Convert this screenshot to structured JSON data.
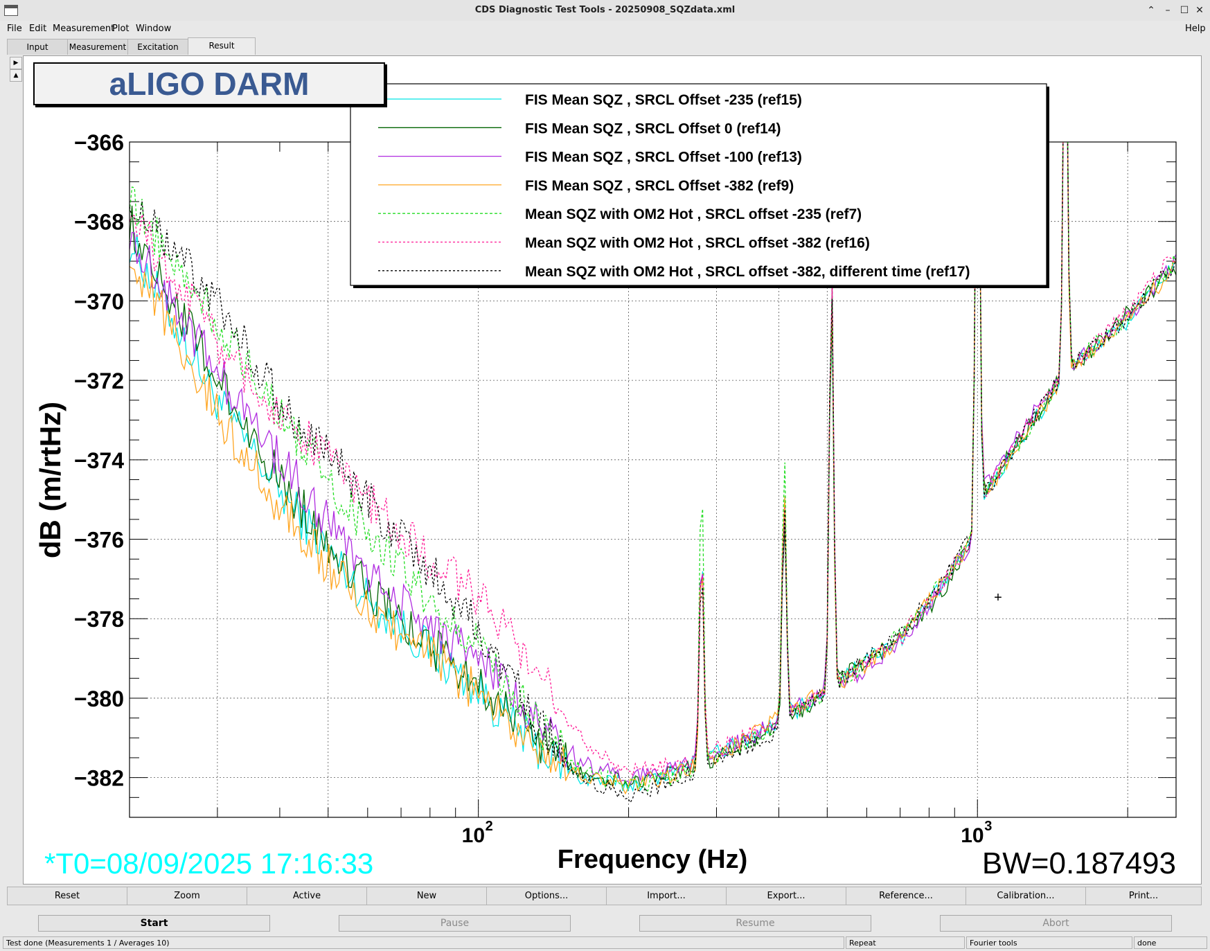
{
  "window": {
    "title": "CDS Diagnostic Test Tools - 20250908_SQZdata.xml",
    "controls": {
      "minimize": "⌃",
      "restore": "–",
      "maximize": "☐",
      "close": "✕"
    }
  },
  "menu": {
    "items": [
      "File",
      "Edit",
      "Measurement",
      "Plot",
      "Window"
    ],
    "help": "Help"
  },
  "tabs": [
    {
      "label": "Input",
      "active": false
    },
    {
      "label": "Measurement",
      "active": false
    },
    {
      "label": "Excitation",
      "active": false
    },
    {
      "label": "Result",
      "active": true
    }
  ],
  "plot": {
    "label": "aLIGO DARM",
    "t0": "*T0=08/09/2025 17:16:33",
    "bw": "BW=0.187493",
    "cursor": "+",
    "colors": {
      "t0": "#00ffff",
      "label_text": "#3a5a92"
    }
  },
  "chart_data": {
    "type": "line",
    "title": "aLIGO DARM",
    "xlabel": "Frequency (Hz)",
    "ylabel": "dB (m/rtHz)",
    "xscale": "log",
    "xlim": [
      20,
      2500
    ],
    "ylim": [
      -383,
      -366
    ],
    "grid": true,
    "legend_position": "top-center",
    "yticks": [
      -366,
      -368,
      -370,
      -372,
      -374,
      -376,
      -378,
      -380,
      -382
    ],
    "ytick_labels": [
      "−366",
      "−368",
      "−370",
      "−372",
      "−374",
      "−376",
      "−378",
      "−380",
      "−382"
    ],
    "xtick_labels": [
      {
        "base": "10",
        "exp": "2",
        "value": 100
      },
      {
        "base": "10",
        "exp": "3",
        "value": 1000
      }
    ],
    "peaks": [
      {
        "f": 280,
        "h": 6.0,
        "w": 0.006
      },
      {
        "f": 410,
        "h": 6.3,
        "w": 0.006
      },
      {
        "f": 510,
        "h": 10.5,
        "w": 0.006
      },
      {
        "f": 1000,
        "h": 13.0,
        "w": 0.006
      },
      {
        "f": 1500,
        "h": 10.5,
        "w": 0.006
      }
    ],
    "series": [
      {
        "name": "FIS Mean SQZ , SRCL Offset -235 (ref15)",
        "color": "#00e5e5",
        "dash": "solid",
        "points": [
          [
            20,
            -368.5
          ],
          [
            30,
            -372.5
          ],
          [
            40,
            -374.8
          ],
          [
            60,
            -377.5
          ],
          [
            80,
            -378.8
          ],
          [
            100,
            -379.8
          ],
          [
            130,
            -381.2
          ],
          [
            160,
            -382.0
          ],
          [
            200,
            -382.2
          ],
          [
            250,
            -381.8
          ],
          [
            300,
            -381.4
          ],
          [
            400,
            -380.6
          ],
          [
            500,
            -379.8
          ],
          [
            560,
            -379.2
          ],
          [
            700,
            -378.5
          ],
          [
            850,
            -377.2
          ],
          [
            980,
            -376.0
          ],
          [
            1020,
            -375.0
          ],
          [
            1300,
            -373.0
          ],
          [
            1440,
            -372.2
          ],
          [
            1560,
            -371.6
          ],
          [
            2000,
            -370.5
          ],
          [
            2500,
            -369.0
          ]
        ],
        "peak_scale": [
          0.9,
          0.9,
          0.9,
          1.0,
          0.95
        ]
      },
      {
        "name": "FIS Mean SQZ , SRCL Offset 0 (ref14)",
        "color": "#006400",
        "dash": "solid",
        "points": [
          [
            20,
            -368.0
          ],
          [
            30,
            -372.0
          ],
          [
            40,
            -374.5
          ],
          [
            60,
            -377.3
          ],
          [
            80,
            -378.7
          ],
          [
            100,
            -379.6
          ],
          [
            130,
            -381.0
          ],
          [
            160,
            -381.9
          ],
          [
            200,
            -382.1
          ],
          [
            250,
            -381.9
          ],
          [
            300,
            -381.5
          ],
          [
            400,
            -380.7
          ],
          [
            500,
            -379.9
          ],
          [
            560,
            -379.3
          ],
          [
            700,
            -378.6
          ],
          [
            850,
            -377.3
          ],
          [
            980,
            -376.0
          ],
          [
            1020,
            -374.9
          ],
          [
            1300,
            -373.0
          ],
          [
            1440,
            -372.1
          ],
          [
            1560,
            -371.7
          ],
          [
            2000,
            -370.3
          ],
          [
            2500,
            -369.2
          ]
        ],
        "peak_scale": [
          0.9,
          0.85,
          0.95,
          1.0,
          1.0
        ]
      },
      {
        "name": "FIS Mean SQZ , SRCL Offset -100 (ref13)",
        "color": "#b02be0",
        "dash": "solid",
        "points": [
          [
            20,
            -368.3
          ],
          [
            30,
            -371.8
          ],
          [
            40,
            -374.0
          ],
          [
            60,
            -376.8
          ],
          [
            80,
            -378.2
          ],
          [
            100,
            -379.0
          ],
          [
            130,
            -380.5
          ],
          [
            160,
            -381.6
          ],
          [
            200,
            -382.0
          ],
          [
            250,
            -381.8
          ],
          [
            300,
            -381.4
          ],
          [
            400,
            -380.6
          ],
          [
            500,
            -379.7
          ],
          [
            560,
            -379.5
          ],
          [
            700,
            -378.6
          ],
          [
            850,
            -377.2
          ],
          [
            980,
            -376.0
          ],
          [
            1020,
            -374.8
          ],
          [
            1300,
            -372.8
          ],
          [
            1440,
            -372.0
          ],
          [
            1560,
            -371.6
          ],
          [
            2000,
            -370.4
          ],
          [
            2500,
            -369.0
          ]
        ],
        "peak_scale": [
          0.9,
          0.9,
          1.0,
          1.0,
          0.95
        ]
      },
      {
        "name": "FIS Mean SQZ , SRCL Offset -382 (ref9)",
        "color": "#ffa520",
        "dash": "solid",
        "points": [
          [
            20,
            -368.8
          ],
          [
            30,
            -372.8
          ],
          [
            40,
            -375.2
          ],
          [
            60,
            -377.8
          ],
          [
            80,
            -378.9
          ],
          [
            100,
            -379.9
          ],
          [
            130,
            -381.2
          ],
          [
            160,
            -382.0
          ],
          [
            200,
            -382.2
          ],
          [
            250,
            -381.9
          ],
          [
            300,
            -381.5
          ],
          [
            400,
            -380.5
          ],
          [
            500,
            -379.8
          ],
          [
            560,
            -379.4
          ],
          [
            700,
            -378.5
          ],
          [
            850,
            -377.1
          ],
          [
            980,
            -376.0
          ],
          [
            1020,
            -375.0
          ],
          [
            1300,
            -373.1
          ],
          [
            1440,
            -372.2
          ],
          [
            1560,
            -371.7
          ],
          [
            2000,
            -370.5
          ],
          [
            2500,
            -369.1
          ]
        ],
        "peak_scale": [
          0.9,
          0.9,
          0.95,
          1.0,
          1.0
        ]
      },
      {
        "name": "Mean SQZ with OM2 Hot , SRCL offset -235 (ref7)",
        "color": "#22dd22",
        "dash": "4,3",
        "points": [
          [
            20,
            -367.5
          ],
          [
            30,
            -370.5
          ],
          [
            40,
            -372.8
          ],
          [
            60,
            -375.8
          ],
          [
            80,
            -377.6
          ],
          [
            100,
            -378.6
          ],
          [
            130,
            -380.6
          ],
          [
            160,
            -381.8
          ],
          [
            200,
            -382.2
          ],
          [
            250,
            -382.0
          ],
          [
            300,
            -381.5
          ],
          [
            400,
            -380.7
          ],
          [
            500,
            -379.8
          ],
          [
            560,
            -379.4
          ],
          [
            700,
            -378.4
          ],
          [
            850,
            -377.0
          ],
          [
            980,
            -375.9
          ],
          [
            1020,
            -375.0
          ],
          [
            1300,
            -373.0
          ],
          [
            1440,
            -372.2
          ],
          [
            1560,
            -371.6
          ],
          [
            2000,
            -370.4
          ],
          [
            2500,
            -369.0
          ]
        ],
        "peak_scale": [
          1.25,
          1.05,
          1.0,
          1.0,
          1.0
        ]
      },
      {
        "name": "Mean SQZ with OM2 Hot , SRCL offset -382 (ref16)",
        "color": "#ff1493",
        "dash": "3,3",
        "points": [
          [
            20,
            -367.8
          ],
          [
            30,
            -371.0
          ],
          [
            40,
            -372.8
          ],
          [
            60,
            -375.0
          ],
          [
            80,
            -376.5
          ],
          [
            100,
            -377.4
          ],
          [
            130,
            -379.2
          ],
          [
            160,
            -381.0
          ],
          [
            200,
            -381.8
          ],
          [
            250,
            -381.7
          ],
          [
            300,
            -381.3
          ],
          [
            400,
            -380.6
          ],
          [
            500,
            -379.8
          ],
          [
            560,
            -379.4
          ],
          [
            700,
            -378.5
          ],
          [
            850,
            -377.1
          ],
          [
            980,
            -376.0
          ],
          [
            1020,
            -375.0
          ],
          [
            1300,
            -372.9
          ],
          [
            1440,
            -372.1
          ],
          [
            1560,
            -371.6
          ],
          [
            2000,
            -370.3
          ],
          [
            2500,
            -368.8
          ]
        ],
        "peak_scale": [
          0.9,
          0.9,
          1.0,
          1.0,
          1.0
        ]
      },
      {
        "name": "Mean SQZ with OM2 Hot , SRCL offset -382, different time (ref17)",
        "color": "#000000",
        "dash": "3,3",
        "points": [
          [
            20,
            -367.5
          ],
          [
            30,
            -370.0
          ],
          [
            40,
            -372.5
          ],
          [
            60,
            -375.0
          ],
          [
            80,
            -376.8
          ],
          [
            100,
            -378.2
          ],
          [
            130,
            -380.5
          ],
          [
            160,
            -382.0
          ],
          [
            200,
            -382.5
          ],
          [
            250,
            -382.0
          ],
          [
            300,
            -381.6
          ],
          [
            400,
            -380.8
          ],
          [
            500,
            -379.8
          ],
          [
            560,
            -379.3
          ],
          [
            700,
            -378.4
          ],
          [
            850,
            -377.1
          ],
          [
            980,
            -375.9
          ],
          [
            1020,
            -375.0
          ],
          [
            1300,
            -372.9
          ],
          [
            1440,
            -372.1
          ],
          [
            1560,
            -371.6
          ],
          [
            2000,
            -370.4
          ],
          [
            2500,
            -369.0
          ]
        ],
        "peak_scale": [
          0.9,
          0.9,
          1.0,
          1.0,
          1.0
        ]
      }
    ]
  },
  "plot_buttons": [
    "Reset",
    "Zoom",
    "Active",
    "New",
    "Options...",
    "Import...",
    "Export...",
    "Reference...",
    "Calibration...",
    "Print..."
  ],
  "controls": {
    "start": "Start",
    "pause": "Pause",
    "resume": "Resume",
    "abort": "Abort"
  },
  "status": {
    "message": "Test done (Measurements 1 / Averages 10)",
    "mode": "Repeat",
    "tool": "Fourier tools",
    "state": "done"
  }
}
